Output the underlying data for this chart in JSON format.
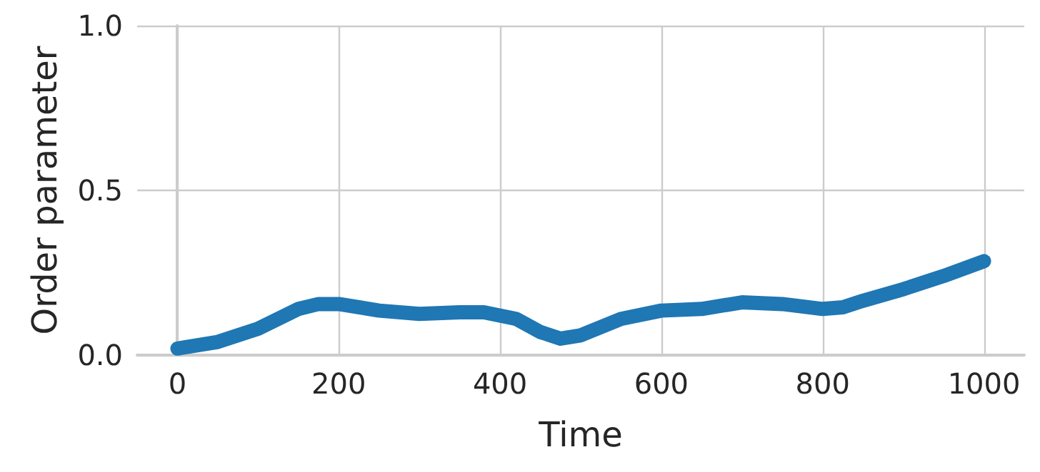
{
  "chart_data": {
    "type": "line",
    "xlabel": "Time",
    "ylabel": "Order parameter",
    "x": [
      0,
      50,
      100,
      150,
      175,
      200,
      250,
      300,
      350,
      380,
      420,
      450,
      475,
      500,
      550,
      600,
      650,
      700,
      750,
      800,
      825,
      850,
      900,
      950,
      1000
    ],
    "series": [
      {
        "color": "#1f77b4",
        "values": [
          0.02,
          0.04,
          0.08,
          0.14,
          0.155,
          0.155,
          0.135,
          0.125,
          0.13,
          0.13,
          0.11,
          0.07,
          0.05,
          0.06,
          0.11,
          0.135,
          0.14,
          0.16,
          0.155,
          0.14,
          0.145,
          0.165,
          0.2,
          0.24,
          0.285
        ]
      }
    ],
    "xlim": [
      -50,
      1050
    ],
    "xticks": [
      0,
      200,
      400,
      600,
      800,
      1000
    ],
    "ylim": [
      0,
      1
    ],
    "yticks": [
      {
        "value": 0,
        "label": "0.0"
      },
      0.5,
      {
        "value": 1,
        "label": "1.0"
      }
    ],
    "grid": true,
    "line_style": "solid"
  }
}
